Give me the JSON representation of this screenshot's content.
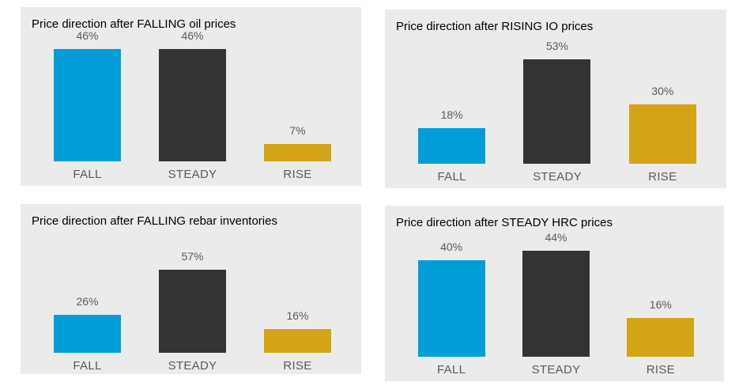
{
  "colors": {
    "fall_bar": "#009ED9",
    "steady_bar": "#333333",
    "rise_bar": "#D2A416",
    "panel_background": "#EBEBEB",
    "label_text": "#595959",
    "title_text": "#000000",
    "page_background": "#FFFFFF"
  },
  "chart_data": [
    {
      "type": "bar",
      "title": "Price direction after FALLING oil prices",
      "categories": [
        "FALL",
        "STEADY",
        "RISE"
      ],
      "values": [
        46,
        46,
        7
      ],
      "value_labels": [
        "46%",
        "46%",
        "7%"
      ],
      "ylim": [
        0,
        50
      ],
      "grid": false,
      "legend": false
    },
    {
      "type": "bar",
      "title": "Price direction after RISING IO prices",
      "categories": [
        "FALL",
        "STEADY",
        "RISE"
      ],
      "values": [
        18,
        53,
        30
      ],
      "value_labels": [
        "18%",
        "53%",
        "30%"
      ],
      "ylim": [
        0,
        60
      ],
      "grid": false,
      "legend": false
    },
    {
      "type": "bar",
      "title": "Price direction after FALLING rebar inventories",
      "categories": [
        "FALL",
        "STEADY",
        "RISE"
      ],
      "values": [
        26,
        57,
        16
      ],
      "value_labels": [
        "26%",
        "57%",
        "16%"
      ],
      "ylim": [
        0,
        60
      ],
      "grid": false,
      "legend": false
    },
    {
      "type": "bar",
      "title": "Price direction after STEADY HRC prices",
      "categories": [
        "FALL",
        "STEADY",
        "RISE"
      ],
      "values": [
        40,
        44,
        16
      ],
      "value_labels": [
        "40%",
        "44%",
        "16%"
      ],
      "ylim": [
        0,
        50
      ],
      "grid": false,
      "legend": false
    }
  ]
}
